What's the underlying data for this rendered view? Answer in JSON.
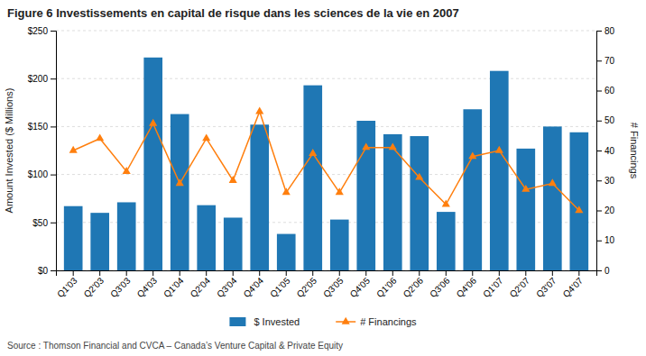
{
  "chart_data": {
    "type": "bar",
    "title": "Figure 6 Investissements en capital de risque dans les sciences de la vie en 2007",
    "source": "Source :  Thomson Financial and CVCA – Canada’s Venture Capital & Private Equity",
    "categories": [
      "Q1'03",
      "Q2'03",
      "Q3'03",
      "Q4'03",
      "Q1'04",
      "Q2'04",
      "Q3'04",
      "Q4'04",
      "Q1'05",
      "Q2'05",
      "Q3'05",
      "Q4'05",
      "Q1'06",
      "Q2'06",
      "Q3'06",
      "Q4'06",
      "Q1'07",
      "Q2'07",
      "Q3'07",
      "Q4'07"
    ],
    "series": [
      {
        "name": "$ Invested",
        "type": "bar",
        "values": [
          67,
          60,
          71,
          222,
          163,
          68,
          55,
          152,
          38,
          193,
          53,
          156,
          142,
          140,
          61,
          168,
          208,
          127,
          150,
          144
        ]
      },
      {
        "name": "# Financings",
        "type": "line",
        "axis": "y2",
        "marker": "triangle",
        "values": [
          40,
          44,
          33,
          49,
          29,
          44,
          30,
          53,
          26,
          39,
          26,
          41,
          41,
          31,
          22,
          38,
          40,
          27,
          29,
          20
        ]
      }
    ],
    "ylabel": "Amount Invested ($ Millions)",
    "y2label": "# Financings",
    "ylim": [
      0,
      250
    ],
    "yticks": [
      {
        "value": 0,
        "label": "$0"
      },
      {
        "value": 50,
        "label": "$50"
      },
      {
        "value": 100,
        "label": "$100"
      },
      {
        "value": 150,
        "label": "$150"
      },
      {
        "value": 200,
        "label": "$200"
      },
      {
        "value": 250,
        "label": "$250"
      }
    ],
    "y2lim": [
      0,
      80
    ],
    "y2ticks": [
      0,
      10,
      20,
      30,
      40,
      50,
      60,
      70,
      80
    ],
    "grid": true,
    "legend": "bottom"
  }
}
